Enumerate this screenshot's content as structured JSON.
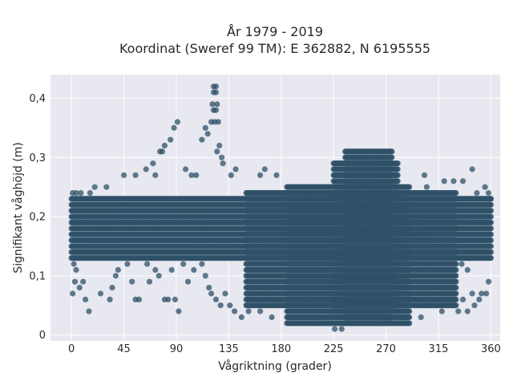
{
  "chart_data": {
    "type": "scatter",
    "title_lines": [
      "År 1979 - 2019",
      "Koordinat (Sweref 99 TM): E 362882, N 6195555"
    ],
    "xlabel": "Vågriktning (grader)",
    "ylabel": "Signifikant våghöjd (m)",
    "xlim": [
      -18,
      368
    ],
    "ylim": [
      -0.01,
      0.44
    ],
    "x_ticks": [
      0,
      45,
      90,
      135,
      180,
      225,
      270,
      315,
      360
    ],
    "x_tick_labels": [
      "0",
      "45",
      "90",
      "135",
      "180",
      "225",
      "270",
      "315",
      "360"
    ],
    "y_ticks": [
      0,
      0.1,
      0.2,
      0.3,
      0.4
    ],
    "y_tick_labels": [
      "0",
      "0,1",
      "0,2",
      "0,3",
      "0,4"
    ],
    "grid": true,
    "legend": false,
    "marker_color": "#2f5168",
    "plot_background": "#e8e8f0",
    "grid_color": "#ffffff",
    "bands": [
      {
        "x": [
          0,
          360
        ],
        "y": [
          0.13,
          0.23
        ]
      },
      {
        "x": [
          150,
          330
        ],
        "y": [
          0.05,
          0.24
        ]
      },
      {
        "x": [
          185,
          290
        ],
        "y": [
          0.02,
          0.25
        ]
      },
      {
        "x": [
          235,
          275
        ],
        "y": [
          0.02,
          0.31
        ]
      },
      {
        "x": [
          225,
          280
        ],
        "y": [
          0.04,
          0.29
        ]
      }
    ],
    "points": [
      [
        122,
        0.42
      ],
      [
        124,
        0.42
      ],
      [
        122,
        0.41
      ],
      [
        124,
        0.41
      ],
      [
        121,
        0.39
      ],
      [
        125,
        0.39
      ],
      [
        122,
        0.38
      ],
      [
        124,
        0.38
      ],
      [
        120,
        0.36
      ],
      [
        123,
        0.36
      ],
      [
        126,
        0.36
      ],
      [
        91,
        0.36
      ],
      [
        88,
        0.35
      ],
      [
        115,
        0.35
      ],
      [
        117,
        0.34
      ],
      [
        85,
        0.33
      ],
      [
        112,
        0.33
      ],
      [
        80,
        0.32
      ],
      [
        127,
        0.32
      ],
      [
        76,
        0.31
      ],
      [
        78,
        0.31
      ],
      [
        125,
        0.31
      ],
      [
        129,
        0.3
      ],
      [
        70,
        0.29
      ],
      [
        130,
        0.29
      ],
      [
        64,
        0.28
      ],
      [
        98,
        0.28
      ],
      [
        141,
        0.28
      ],
      [
        166,
        0.28
      ],
      [
        344,
        0.28
      ],
      [
        45,
        0.27
      ],
      [
        55,
        0.27
      ],
      [
        72,
        0.27
      ],
      [
        103,
        0.27
      ],
      [
        107,
        0.27
      ],
      [
        137,
        0.27
      ],
      [
        162,
        0.27
      ],
      [
        176,
        0.27
      ],
      [
        303,
        0.27
      ],
      [
        320,
        0.26
      ],
      [
        328,
        0.26
      ],
      [
        336,
        0.26
      ],
      [
        355,
        0.25
      ],
      [
        20,
        0.25
      ],
      [
        30,
        0.25
      ],
      [
        1,
        0.24
      ],
      [
        4,
        0.24
      ],
      [
        8,
        0.24
      ],
      [
        16,
        0.24
      ],
      [
        183,
        0.24
      ],
      [
        200,
        0.24
      ],
      [
        312,
        0.24
      ],
      [
        348,
        0.24
      ],
      [
        358,
        0.24
      ],
      [
        360,
        0.23
      ],
      [
        195,
        0.25
      ],
      [
        210,
        0.25
      ],
      [
        305,
        0.25
      ],
      [
        242,
        0.31
      ],
      [
        252,
        0.31
      ],
      [
        262,
        0.31
      ],
      [
        2,
        0.12
      ],
      [
        4,
        0.11
      ],
      [
        3,
        0.09
      ],
      [
        1,
        0.07
      ],
      [
        7,
        0.08
      ],
      [
        10,
        0.09
      ],
      [
        12,
        0.06
      ],
      [
        15,
        0.04
      ],
      [
        25,
        0.07
      ],
      [
        33,
        0.06
      ],
      [
        35,
        0.08
      ],
      [
        38,
        0.1
      ],
      [
        40,
        0.11
      ],
      [
        48,
        0.12
      ],
      [
        52,
        0.09
      ],
      [
        55,
        0.06
      ],
      [
        58,
        0.06
      ],
      [
        65,
        0.12
      ],
      [
        67,
        0.09
      ],
      [
        72,
        0.11
      ],
      [
        75,
        0.1
      ],
      [
        80,
        0.06
      ],
      [
        83,
        0.06
      ],
      [
        86,
        0.11
      ],
      [
        89,
        0.06
      ],
      [
        92,
        0.04
      ],
      [
        96,
        0.12
      ],
      [
        100,
        0.09
      ],
      [
        105,
        0.11
      ],
      [
        112,
        0.12
      ],
      [
        115,
        0.1
      ],
      [
        118,
        0.08
      ],
      [
        120,
        0.07
      ],
      [
        124,
        0.06
      ],
      [
        128,
        0.05
      ],
      [
        132,
        0.07
      ],
      [
        136,
        0.05
      ],
      [
        140,
        0.04
      ],
      [
        146,
        0.03
      ],
      [
        152,
        0.04
      ],
      [
        162,
        0.04
      ],
      [
        172,
        0.03
      ],
      [
        187,
        0.02
      ],
      [
        210,
        0.02
      ],
      [
        226,
        0.01
      ],
      [
        232,
        0.01
      ],
      [
        236,
        0.02
      ],
      [
        268,
        0.02
      ],
      [
        282,
        0.02
      ],
      [
        300,
        0.03
      ],
      [
        306,
        0.05
      ],
      [
        318,
        0.04
      ],
      [
        322,
        0.05
      ],
      [
        328,
        0.05
      ],
      [
        332,
        0.04
      ],
      [
        336,
        0.06
      ],
      [
        340,
        0.04
      ],
      [
        344,
        0.07
      ],
      [
        346,
        0.05
      ],
      [
        350,
        0.06
      ],
      [
        352,
        0.07
      ],
      [
        356,
        0.07
      ],
      [
        358,
        0.09
      ],
      [
        340,
        0.11
      ],
      [
        335,
        0.12
      ]
    ]
  }
}
